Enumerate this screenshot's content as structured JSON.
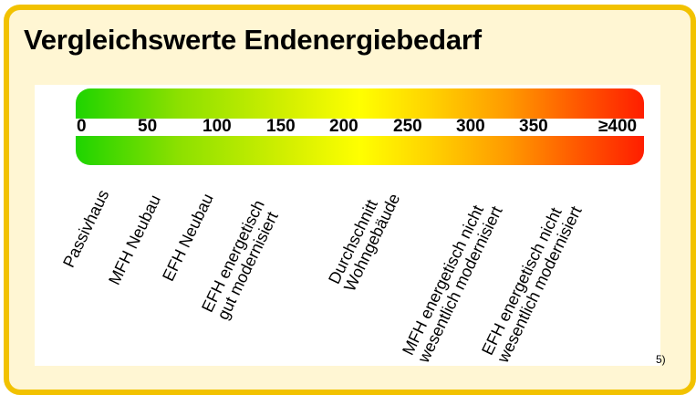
{
  "title": "Vergleichswerte Endenergiebedarf",
  "scale": {
    "ticks": [
      "0",
      "50",
      "100",
      "150",
      "200",
      "250",
      "300",
      "350",
      "≥400"
    ]
  },
  "categories": [
    {
      "lines": [
        "Passivhaus"
      ]
    },
    {
      "lines": [
        "MFH Neubau"
      ]
    },
    {
      "lines": [
        "EFH Neubau"
      ]
    },
    {
      "lines": [
        "EFH energetisch",
        "gut modernisiert"
      ]
    },
    {
      "lines": [
        "Durchschnitt",
        "Wohngebäude"
      ]
    },
    {
      "lines": [
        "MFH energetisch nicht",
        "wesentlich modernisiert"
      ]
    },
    {
      "lines": [
        "EFH energetisch nicht",
        "wesentlich modernisiert"
      ]
    }
  ],
  "footnote": "5)",
  "colors": {
    "frame": "#f2c200",
    "low": "#1ed400",
    "mid": "#ffff00",
    "high": "#ff1e00"
  }
}
